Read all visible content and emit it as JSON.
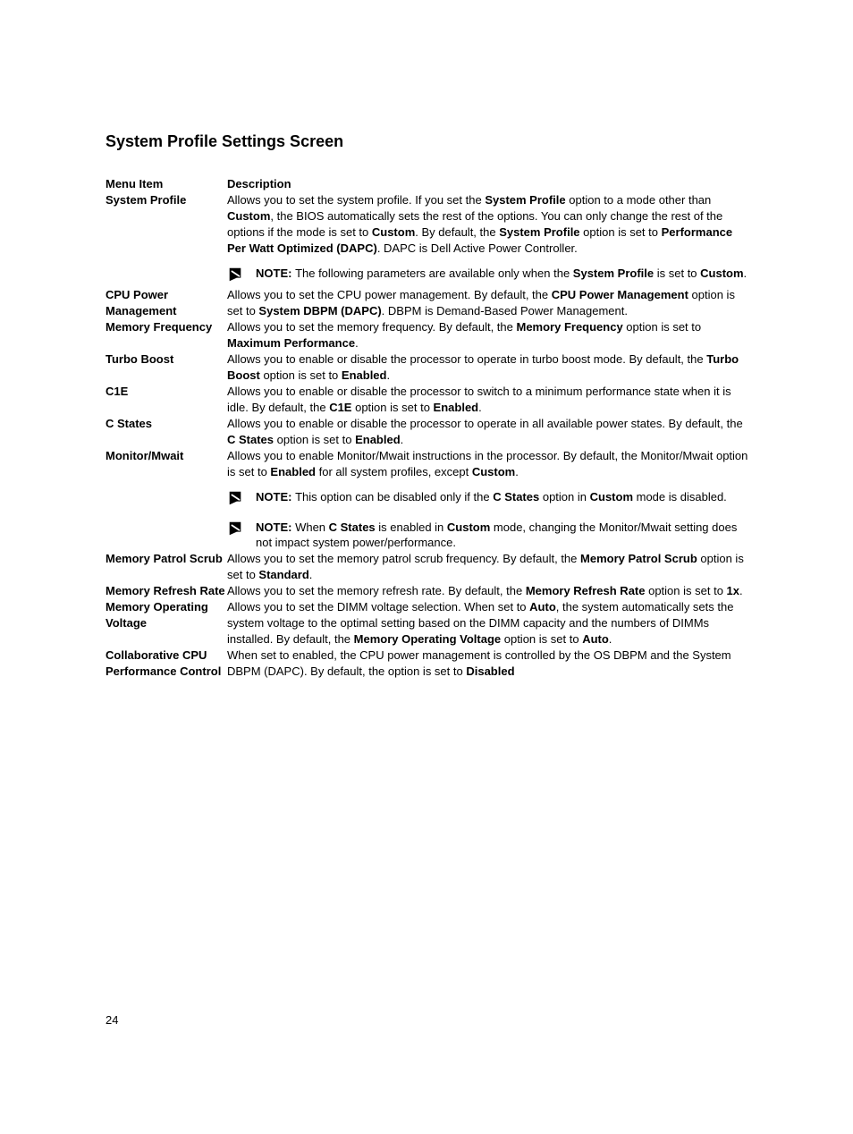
{
  "heading": "System Profile Settings Screen",
  "header": {
    "menu": "Menu Item",
    "desc": "Description"
  },
  "rows": {
    "system_profile": {
      "label": "System Profile",
      "segments": [
        {
          "t": "Allows you to set the system profile. If you set the "
        },
        {
          "t": "System Profile",
          "b": true
        },
        {
          "t": " option to a mode other than "
        },
        {
          "t": "Custom",
          "b": true
        },
        {
          "t": ", the BIOS automatically sets the rest of the options. You can only change the rest of the options if the mode is set to "
        },
        {
          "t": "Custom",
          "b": true
        },
        {
          "t": ". By default, the "
        },
        {
          "t": "System Profile",
          "b": true
        },
        {
          "t": " option is set to "
        },
        {
          "t": "Performance Per Watt Optimized (DAPC)",
          "b": true
        },
        {
          "t": ". DAPC is Dell Active Power Controller."
        }
      ],
      "notes": [
        [
          {
            "t": "NOTE: ",
            "b": true
          },
          {
            "t": "The following parameters are available only when the "
          },
          {
            "t": "System Profile",
            "b": true
          },
          {
            "t": " is set to "
          },
          {
            "t": "Custom",
            "b": true
          },
          {
            "t": "."
          }
        ]
      ]
    },
    "cpu_power": {
      "label": "CPU Power Management",
      "segments": [
        {
          "t": "Allows you to set the CPU power management. By default, the "
        },
        {
          "t": "CPU Power Management",
          "b": true
        },
        {
          "t": " option is set to "
        },
        {
          "t": "System DBPM (DAPC)",
          "b": true
        },
        {
          "t": ". DBPM is Demand-Based Power Management."
        }
      ]
    },
    "mem_freq": {
      "label": "Memory Frequency",
      "segments": [
        {
          "t": "Allows you to set the memory frequency. By default, the "
        },
        {
          "t": "Memory Frequency",
          "b": true
        },
        {
          "t": " option is set to "
        },
        {
          "t": "Maximum Performance",
          "b": true
        },
        {
          "t": "."
        }
      ]
    },
    "turbo": {
      "label": "Turbo Boost",
      "segments": [
        {
          "t": "Allows you to enable or disable the processor to operate in turbo boost mode. By default, the "
        },
        {
          "t": "Turbo Boost",
          "b": true
        },
        {
          "t": " option is set to "
        },
        {
          "t": "Enabled",
          "b": true
        },
        {
          "t": "."
        }
      ]
    },
    "c1e": {
      "label": "C1E",
      "segments": [
        {
          "t": "Allows you to enable or disable the processor to switch to a minimum performance state when it is idle. By default, the "
        },
        {
          "t": "C1E",
          "b": true
        },
        {
          "t": " option is set to "
        },
        {
          "t": "Enabled",
          "b": true
        },
        {
          "t": "."
        }
      ]
    },
    "cstates": {
      "label": "C States",
      "segments": [
        {
          "t": "Allows you to enable or disable the processor to operate in all available power states. By default, the "
        },
        {
          "t": "C States",
          "b": true
        },
        {
          "t": " option is set to "
        },
        {
          "t": "Enabled",
          "b": true
        },
        {
          "t": "."
        }
      ]
    },
    "mwait": {
      "label": "Monitor/Mwait",
      "segments": [
        {
          "t": "Allows you to enable Monitor/Mwait instructions in the processor. By default, the Monitor/Mwait option is set to "
        },
        {
          "t": "Enabled",
          "b": true
        },
        {
          "t": " for all system profiles, except "
        },
        {
          "t": "Custom",
          "b": true
        },
        {
          "t": "."
        }
      ],
      "notes": [
        [
          {
            "t": "NOTE: ",
            "b": true
          },
          {
            "t": "This option can be disabled only if the "
          },
          {
            "t": "C States",
            "b": true
          },
          {
            "t": " option in "
          },
          {
            "t": "Custom",
            "b": true
          },
          {
            "t": " mode is disabled."
          }
        ],
        [
          {
            "t": "NOTE: ",
            "b": true
          },
          {
            "t": "When "
          },
          {
            "t": "C States",
            "b": true
          },
          {
            "t": " is enabled in "
          },
          {
            "t": "Custom",
            "b": true
          },
          {
            "t": " mode, changing the Monitor/Mwait setting does not impact system power/performance."
          }
        ]
      ]
    },
    "patrol": {
      "label": "Memory Patrol Scrub",
      "segments": [
        {
          "t": "Allows you to set the memory patrol scrub frequency. By default, the "
        },
        {
          "t": "Memory Patrol Scrub",
          "b": true
        },
        {
          "t": " option is set to "
        },
        {
          "t": "Standard",
          "b": true
        },
        {
          "t": "."
        }
      ]
    },
    "refresh": {
      "label": "Memory Refresh Rate",
      "segments": [
        {
          "t": "Allows you to set the memory refresh rate. By default, the "
        },
        {
          "t": "Memory Refresh Rate",
          "b": true
        },
        {
          "t": " option is set to "
        },
        {
          "t": "1x",
          "b": true
        },
        {
          "t": "."
        }
      ]
    },
    "voltage": {
      "label": "Memory Operating Voltage",
      "segments": [
        {
          "t": "Allows you to set the DIMM voltage selection. When set to "
        },
        {
          "t": "Auto",
          "b": true
        },
        {
          "t": ", the system automatically sets the system voltage to the optimal setting based on the DIMM capacity and the numbers of DIMMs installed. By default, the "
        },
        {
          "t": "Memory Operating Voltage",
          "b": true
        },
        {
          "t": " option is set to "
        },
        {
          "t": "Auto",
          "b": true
        },
        {
          "t": "."
        }
      ]
    },
    "collab": {
      "label": "Collaborative CPU Performance Control",
      "segments": [
        {
          "t": "When set to enabled, the CPU power management is controlled by the OS DBPM and the System DBPM (DAPC). By default, the option is set to "
        },
        {
          "t": "Disabled",
          "b": true
        }
      ]
    }
  },
  "page_number": "24",
  "colors": {
    "text": "#000000",
    "background": "#ffffff",
    "icon_fill": "#000000"
  }
}
